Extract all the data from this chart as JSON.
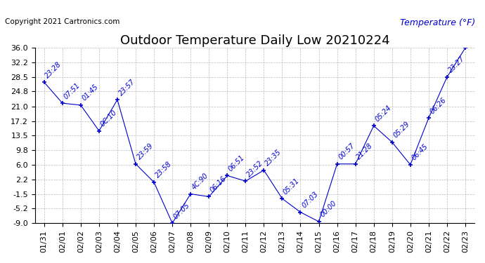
{
  "title": "Outdoor Temperature Daily Low 20210224",
  "ylabel": "Temperature (°F)",
  "copyright": "Copyright 2021 Cartronics.com",
  "dates": [
    "01/31",
    "02/01",
    "02/02",
    "02/03",
    "02/04",
    "02/05",
    "02/06",
    "02/07",
    "02/08",
    "02/09",
    "02/10",
    "02/11",
    "02/12",
    "02/13",
    "02/14",
    "02/15",
    "02/16",
    "02/17",
    "02/18",
    "02/19",
    "02/20",
    "02/21",
    "02/22",
    "02/23"
  ],
  "values": [
    27.2,
    21.8,
    21.3,
    14.7,
    22.7,
    6.2,
    1.5,
    -9.0,
    -1.5,
    -2.2,
    3.2,
    1.8,
    4.6,
    -2.7,
    -6.2,
    -8.6,
    6.2,
    6.2,
    16.0,
    11.8,
    6.0,
    18.0,
    28.5,
    36.0
  ],
  "time_labels": [
    "23:28",
    "07:51",
    "01:45",
    "0C:10",
    "23:57",
    "23:59",
    "23:58",
    "07:05",
    "4C:90",
    "06:16",
    "06:51",
    "23:52",
    "23:35",
    "05:31",
    "07:03",
    "00:00",
    "00:57",
    "21:28",
    "05:24",
    "05:29",
    "06:45",
    "06:26",
    "23:27",
    ""
  ],
  "line_color": "#0000cc",
  "marker": "+",
  "bg_color": "#ffffff",
  "grid_color": "#bbbbbb",
  "ylim_min": -9.0,
  "ylim_max": 36.0,
  "yticks": [
    36.0,
    32.2,
    28.5,
    24.8,
    21.0,
    17.2,
    13.5,
    9.8,
    6.0,
    2.2,
    -1.5,
    -5.2,
    -9.0
  ],
  "title_fontsize": 13,
  "tick_fontsize": 8,
  "copyright_fontsize": 7.5,
  "ylabel_fontsize": 9,
  "annotation_fontsize": 7
}
